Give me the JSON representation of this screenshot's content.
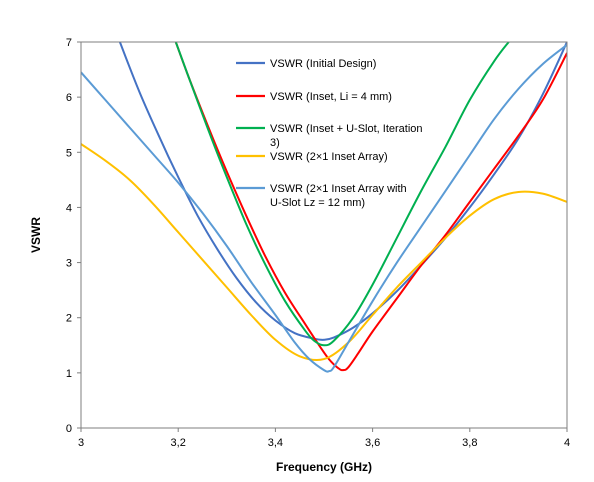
{
  "chart_data": {
    "type": "line",
    "title": "",
    "xlabel": "Frequency (GHz)",
    "ylabel": "VSWR",
    "xlim": [
      3,
      4
    ],
    "ylim": [
      0,
      7
    ],
    "x_tick_labels": [
      "3",
      "3,2",
      "3,4",
      "3,6",
      "3,8",
      "4"
    ],
    "x_tick_values": [
      3,
      3.2,
      3.4,
      3.6,
      3.8,
      4
    ],
    "y_tick_labels": [
      "0",
      "1",
      "2",
      "3",
      "4",
      "5",
      "6",
      "7"
    ],
    "y_tick_values": [
      0,
      1,
      2,
      3,
      4,
      5,
      6,
      7
    ],
    "grid": false,
    "legend_position": "top-center",
    "series": [
      {
        "name": "VSWR (Initial Design)",
        "name_lines": [
          "VSWR (Initial Design)"
        ],
        "color": "#4472C4",
        "x": [
          3.08,
          3.12,
          3.16,
          3.2,
          3.24,
          3.28,
          3.32,
          3.36,
          3.4,
          3.44,
          3.48,
          3.5,
          3.52,
          3.56,
          3.6,
          3.65,
          3.7,
          3.75,
          3.8,
          3.85,
          3.9,
          3.95,
          4.0
        ],
        "y": [
          7.0,
          6.1,
          5.3,
          4.55,
          3.85,
          3.25,
          2.72,
          2.28,
          1.95,
          1.72,
          1.62,
          1.6,
          1.64,
          1.82,
          2.08,
          2.48,
          2.95,
          3.45,
          4.0,
          4.6,
          5.25,
          6.05,
          7.0
        ]
      },
      {
        "name": "VSWR (Inset, Li = 4 mm)",
        "name_lines": [
          "VSWR (Inset, Li = 4 mm)"
        ],
        "color": "#FF0000",
        "x": [
          3.195,
          3.22,
          3.26,
          3.3,
          3.34,
          3.38,
          3.42,
          3.46,
          3.49,
          3.51,
          3.53,
          3.54,
          3.55,
          3.57,
          3.6,
          3.65,
          3.7,
          3.75,
          3.8,
          3.85,
          3.9,
          3.95,
          4.0
        ],
        "y": [
          7.0,
          6.4,
          5.5,
          4.65,
          3.85,
          3.1,
          2.45,
          1.9,
          1.5,
          1.25,
          1.08,
          1.05,
          1.1,
          1.35,
          1.75,
          2.35,
          2.95,
          3.5,
          4.1,
          4.7,
          5.3,
          5.95,
          6.8
        ]
      },
      {
        "name": "VSWR (Inset + U-Slot, Iteration 3)",
        "name_lines": [
          "VSWR (Inset + U-Slot, Iteration",
          "3)"
        ],
        "color": "#00B050",
        "x": [
          3.195,
          3.22,
          3.26,
          3.3,
          3.34,
          3.38,
          3.42,
          3.46,
          3.48,
          3.5,
          3.52,
          3.56,
          3.6,
          3.65,
          3.7,
          3.75,
          3.8,
          3.85,
          3.88
        ],
        "y": [
          7.0,
          6.4,
          5.45,
          4.55,
          3.7,
          2.95,
          2.3,
          1.78,
          1.58,
          1.5,
          1.58,
          2.0,
          2.6,
          3.45,
          4.3,
          5.1,
          5.95,
          6.65,
          7.0
        ]
      },
      {
        "name": "VSWR (2×1 Inset Array)",
        "name_lines": [
          "VSWR (2×1 Inset Array)"
        ],
        "color": "#FFC000",
        "x": [
          3.0,
          3.05,
          3.1,
          3.15,
          3.2,
          3.25,
          3.3,
          3.35,
          3.4,
          3.45,
          3.5,
          3.55,
          3.6,
          3.65,
          3.7,
          3.75,
          3.8,
          3.85,
          3.9,
          3.95,
          4.0
        ],
        "y": [
          5.15,
          4.85,
          4.5,
          4.05,
          3.55,
          3.05,
          2.55,
          2.05,
          1.6,
          1.3,
          1.25,
          1.55,
          2.05,
          2.55,
          3.0,
          3.45,
          3.85,
          4.15,
          4.28,
          4.25,
          4.1
        ]
      },
      {
        "name": "VSWR (2×1 Inset Array with U-Slot Lz = 12 mm)",
        "name_lines": [
          "VSWR (2×1 Inset Array with",
          "U-Slot Lz = 12 mm)"
        ],
        "color": "#5B9BD5",
        "x": [
          3.0,
          3.05,
          3.1,
          3.15,
          3.2,
          3.25,
          3.3,
          3.35,
          3.4,
          3.44,
          3.47,
          3.5,
          3.51,
          3.52,
          3.55,
          3.6,
          3.65,
          3.7,
          3.75,
          3.8,
          3.85,
          3.9,
          3.95,
          4.0
        ],
        "y": [
          6.45,
          5.95,
          5.45,
          4.95,
          4.45,
          3.9,
          3.3,
          2.65,
          2.05,
          1.55,
          1.25,
          1.05,
          1.03,
          1.1,
          1.55,
          2.3,
          3.0,
          3.65,
          4.3,
          4.95,
          5.6,
          6.15,
          6.6,
          6.95
        ]
      }
    ]
  }
}
